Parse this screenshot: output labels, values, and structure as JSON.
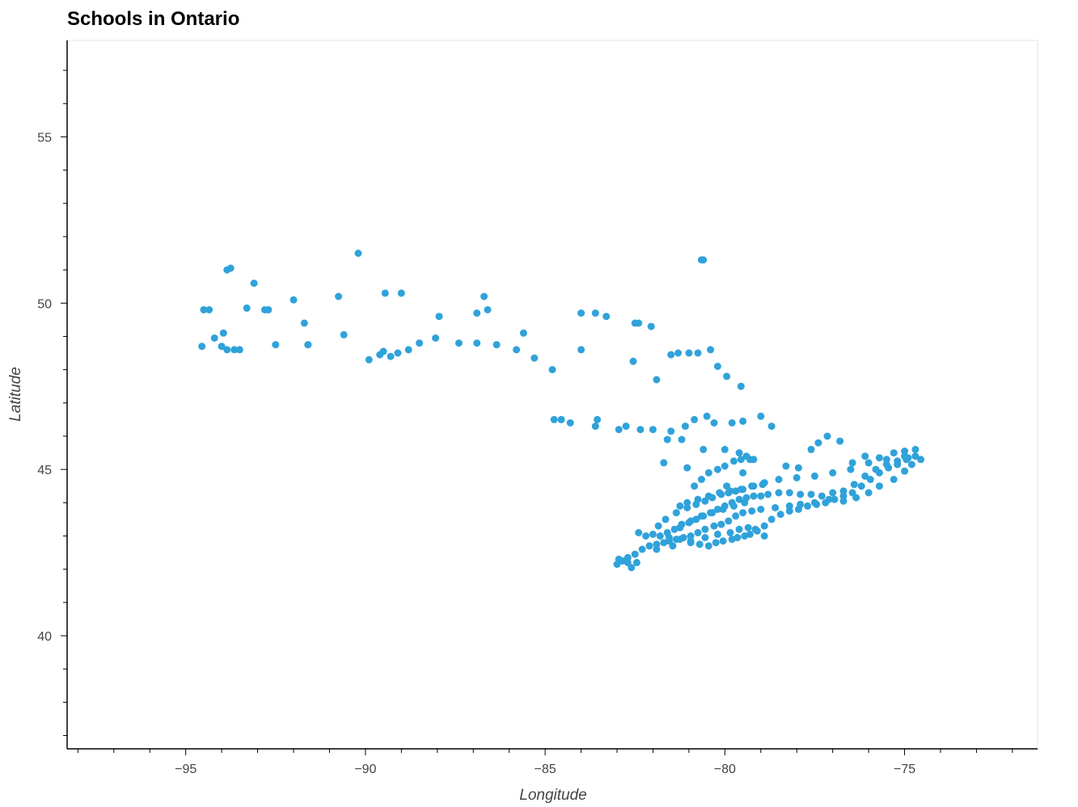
{
  "chart_data": {
    "type": "scatter",
    "title": "Schools in Ontario",
    "xlabel": "Longitude",
    "ylabel": "Latitude",
    "xlim": [
      -98.3,
      -71.3
    ],
    "ylim": [
      36.6,
      57.9
    ],
    "x_ticks": [
      -95,
      -90,
      -85,
      -80,
      -75
    ],
    "x_tick_labels": [
      "−95",
      "−90",
      "−85",
      "−80",
      "−75"
    ],
    "y_ticks": [
      40,
      45,
      50,
      55
    ],
    "y_tick_labels": [
      "40",
      "45",
      "50",
      "55"
    ],
    "grid": false,
    "marker_color": "#30a2da",
    "series": [
      {
        "x": [
          -94.5,
          -94.35,
          -94.2,
          -93.85,
          -93.75,
          -93.95,
          -93.3,
          -93.1,
          -92.8,
          -92.7,
          -92.0,
          -91.7,
          -91.6,
          -90.75,
          -90.2,
          -89.45,
          -89.0,
          -87.95,
          -86.7,
          -86.9,
          -86.6,
          -85.6,
          -84.0,
          -83.6,
          -83.3,
          -82.5,
          -82.4,
          -82.05,
          -80.65,
          -80.6,
          -93.5,
          -93.65,
          -94.55,
          -94.0,
          -93.85,
          -92.5,
          -91.6,
          -90.6,
          -89.9,
          -89.6,
          -89.5,
          -89.3,
          -89.1,
          -88.8,
          -88.5,
          -88.05,
          -87.4,
          -86.9,
          -86.35,
          -85.8,
          -85.3,
          -84.8,
          -84.0,
          -83.55,
          -82.55,
          -81.9,
          -81.3,
          -80.75,
          -80.4,
          -81.0,
          -81.5,
          -80.2,
          -79.95,
          -79.55,
          -84.75,
          -84.55,
          -84.3,
          -83.6,
          -82.95,
          -82.75,
          -82.35,
          -82.0,
          -81.5,
          -81.1,
          -80.85,
          -80.5,
          -80.3,
          -79.8,
          -79.5,
          -79.0,
          -78.7,
          -81.6,
          -81.2,
          -81.7,
          -81.05,
          -80.6,
          -80.0,
          -79.6,
          -79.2,
          -79.95,
          -79.5,
          -79.3,
          -78.3,
          -77.95,
          -77.6,
          -77.4,
          -77.15,
          -76.8,
          -76.45,
          -76.1,
          -75.7,
          -75.3,
          -75.0,
          -74.7,
          -74.55,
          -74.8,
          -75.0,
          -75.3,
          -75.7,
          -76.0,
          -76.35,
          -76.7,
          -77.1,
          -77.5,
          -77.9,
          -78.2,
          -78.6,
          -79.0,
          -79.25,
          -79.5,
          -79.7,
          -79.9,
          -80.1,
          -80.3,
          -80.55,
          -80.75,
          -80.95,
          -81.15,
          -81.35,
          -81.55,
          -81.7,
          -81.9,
          -82.1,
          -82.3,
          -82.5,
          -82.7,
          -82.85,
          -83.0,
          -82.4,
          -82.2,
          -82.0,
          -81.8,
          -81.6,
          -81.4,
          -81.2,
          -81.0,
          -80.8,
          -80.6,
          -80.4,
          -80.2,
          -80.0,
          -79.8,
          -79.6,
          -79.4,
          -79.2,
          -79.0,
          -78.8,
          -78.5,
          -78.2,
          -77.9,
          -77.6,
          -77.3,
          -77.0,
          -76.7,
          -76.4,
          -76.1,
          -75.8,
          -75.5,
          -75.2,
          -74.9,
          -82.95,
          -82.7,
          -82.45,
          -82.6,
          -81.9,
          -81.45,
          -80.95,
          -80.55,
          -80.2,
          -79.85,
          -79.6,
          -79.35,
          -79.15,
          -78.9,
          -81.25,
          -80.95,
          -80.7,
          -80.45,
          -80.25,
          -80.05,
          -79.8,
          -79.65,
          -79.45,
          -79.3,
          -79.1,
          -78.9,
          -78.7,
          -78.45,
          -78.2,
          -77.95,
          -77.7,
          -77.45,
          -77.2,
          -76.95,
          -76.7,
          -76.45,
          -76.2,
          -75.95,
          -75.7,
          -75.45,
          -75.2,
          -74.95,
          -74.7,
          -81.85,
          -81.65,
          -81.35,
          -81.05,
          -80.8,
          -80.55,
          -80.35,
          -80.1,
          -79.9,
          -79.7,
          -79.5,
          -79.2,
          -78.9,
          -78.5,
          -78.0,
          -77.5,
          -77.0,
          -76.5,
          -76.0,
          -75.5,
          -75.0,
          -80.85,
          -80.65,
          -80.45,
          -80.2,
          -80.0,
          -79.75,
          -79.55,
          -79.4,
          -81.25,
          -81.05,
          -80.75,
          -80.45,
          -80.15,
          -79.85,
          -79.55,
          -79.25,
          -78.95,
          -81.55,
          -81.25,
          -80.95,
          -80.65,
          -80.35,
          -80.05,
          -79.75,
          -79.45
        ],
        "y": [
          49.8,
          49.8,
          48.95,
          51.0,
          51.05,
          49.1,
          49.85,
          50.6,
          49.8,
          49.8,
          50.1,
          49.4,
          48.75,
          50.2,
          51.5,
          50.3,
          50.3,
          49.6,
          50.2,
          49.7,
          49.8,
          49.1,
          49.7,
          49.7,
          49.6,
          49.4,
          49.4,
          49.3,
          51.3,
          51.3,
          48.6,
          48.6,
          48.7,
          48.7,
          48.6,
          48.75,
          48.75,
          49.05,
          48.3,
          48.45,
          48.55,
          48.4,
          48.5,
          48.6,
          48.8,
          48.95,
          48.8,
          48.8,
          48.75,
          48.6,
          48.35,
          48.0,
          48.6,
          46.5,
          48.25,
          47.7,
          48.5,
          48.5,
          48.6,
          48.5,
          48.45,
          48.1,
          47.8,
          47.5,
          46.5,
          46.5,
          46.4,
          46.3,
          46.2,
          46.3,
          46.2,
          46.2,
          46.15,
          46.3,
          46.5,
          46.6,
          46.4,
          46.4,
          46.45,
          46.6,
          46.3,
          45.9,
          45.9,
          45.2,
          45.05,
          45.6,
          45.6,
          45.5,
          45.3,
          44.5,
          44.9,
          45.3,
          45.1,
          45.05,
          45.6,
          45.8,
          46.0,
          45.85,
          45.2,
          45.4,
          45.35,
          45.5,
          45.55,
          45.6,
          45.3,
          45.15,
          44.95,
          44.7,
          44.5,
          44.3,
          44.15,
          44.05,
          44.1,
          44.0,
          43.95,
          43.9,
          43.85,
          43.8,
          43.75,
          43.7,
          43.6,
          43.45,
          43.35,
          43.3,
          43.2,
          43.1,
          43.0,
          42.95,
          42.9,
          42.85,
          42.8,
          42.75,
          42.7,
          42.6,
          42.45,
          42.35,
          42.25,
          42.15,
          43.1,
          43.0,
          43.05,
          43.0,
          43.1,
          43.2,
          43.35,
          43.4,
          43.5,
          43.6,
          43.7,
          43.8,
          43.9,
          44.0,
          44.1,
          44.15,
          44.2,
          44.2,
          44.25,
          44.3,
          44.3,
          44.25,
          44.25,
          44.2,
          44.3,
          44.35,
          44.55,
          44.8,
          45.0,
          45.15,
          45.25,
          45.35,
          42.3,
          42.2,
          42.2,
          42.05,
          42.6,
          42.7,
          42.8,
          42.95,
          43.05,
          43.1,
          43.2,
          43.25,
          43.2,
          43.0,
          42.9,
          42.85,
          42.75,
          42.7,
          42.8,
          42.85,
          42.9,
          42.95,
          43.0,
          43.05,
          43.15,
          43.3,
          43.5,
          43.65,
          43.75,
          43.8,
          43.9,
          43.95,
          44.0,
          44.1,
          44.2,
          44.3,
          44.5,
          44.7,
          44.9,
          45.05,
          45.15,
          45.3,
          45.4,
          43.3,
          43.5,
          43.7,
          43.85,
          43.95,
          44.05,
          44.15,
          44.25,
          44.3,
          44.35,
          44.4,
          44.5,
          44.6,
          44.7,
          44.75,
          44.8,
          44.9,
          45.0,
          45.2,
          45.3,
          45.4,
          44.5,
          44.7,
          44.9,
          45.0,
          45.1,
          45.25,
          45.3,
          45.4,
          43.9,
          44.0,
          44.1,
          44.2,
          44.3,
          44.35,
          44.4,
          44.5,
          44.55,
          42.95,
          43.25,
          43.45,
          43.6,
          43.7,
          43.8,
          43.9,
          44.0
        ]
      }
    ]
  }
}
